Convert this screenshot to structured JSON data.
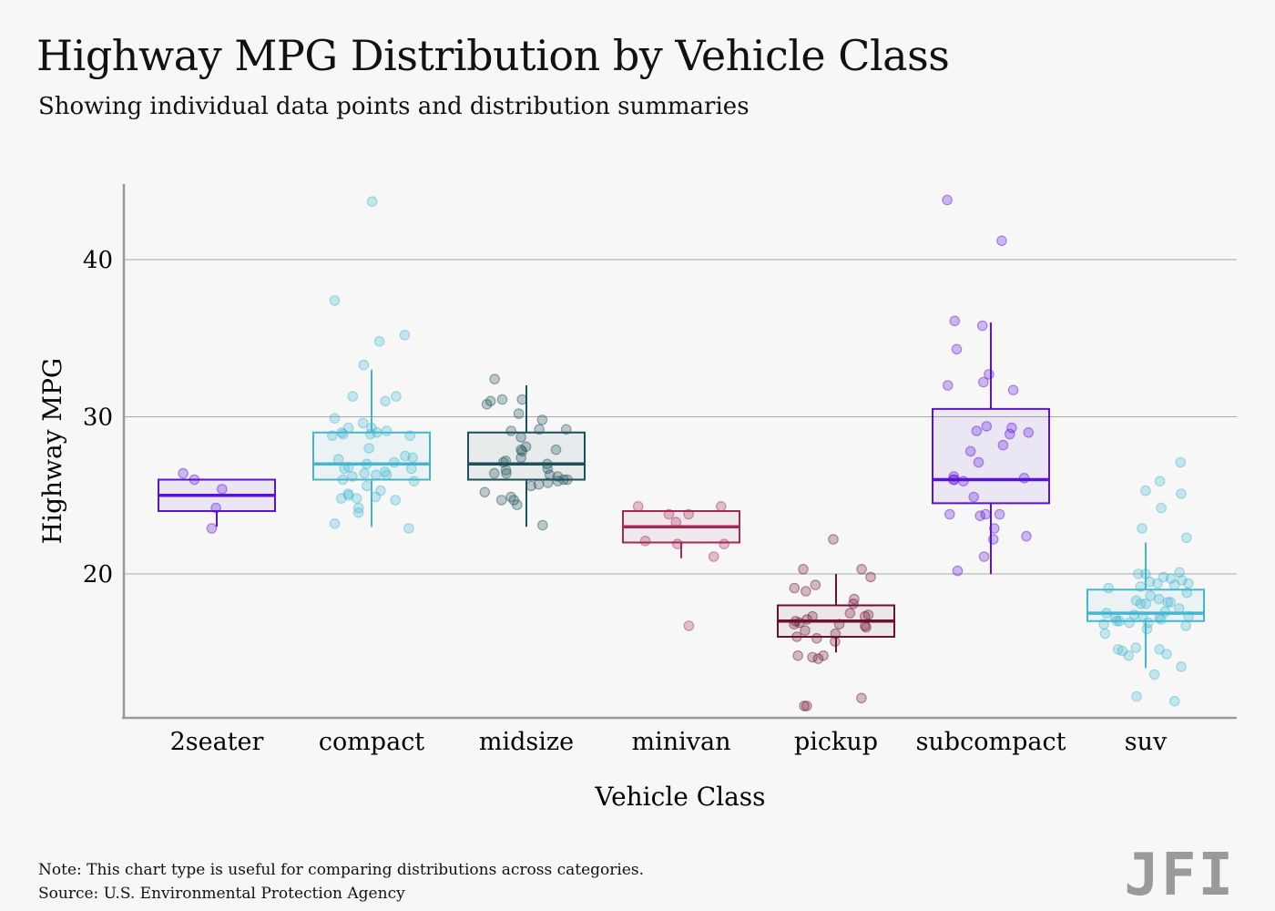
{
  "header": {
    "title": "Highway MPG Distribution by Vehicle Class",
    "subtitle": "Showing individual data points and distribution summaries"
  },
  "footer": {
    "note": "Note: This chart type is useful for comparing distributions across categories.",
    "source": "Source: U.S. Environmental Protection Agency",
    "logo": "JFI"
  },
  "chart_data": {
    "type": "boxplot",
    "title": "Highway MPG Distribution by Vehicle Class",
    "subtitle": "Showing individual data points and distribution summaries",
    "xlabel": "Vehicle Class",
    "ylabel": "Highway MPG",
    "ylim": [
      11,
      45
    ],
    "yticks": [
      20,
      30,
      40
    ],
    "grid": "horizontal",
    "categories": [
      "2seater",
      "compact",
      "midsize",
      "minivan",
      "pickup",
      "subcompact",
      "suv"
    ],
    "series": [
      {
        "category": "2seater",
        "color": "#5a12d8",
        "q1": 24,
        "median": 25,
        "q3": 26,
        "whisker_low": 23,
        "whisker_high": 26,
        "points": [
          24.2,
          25.4,
          26.4,
          26.0,
          22.9
        ]
      },
      {
        "category": "compact",
        "color": "#45b6d2",
        "q1": 26,
        "median": 27,
        "q3": 29,
        "whisker_low": 23,
        "whisker_high": 33,
        "points": [
          43.7,
          37.4,
          35.2,
          34.8,
          33.3,
          31.3,
          31.3,
          31.0,
          29.9,
          29.3,
          29.3,
          29.1,
          29.0,
          29.0,
          28.9,
          28.9,
          28.8,
          28.8,
          27.4,
          27.3,
          27.0,
          26.7,
          26.7,
          26.4,
          26.3,
          26.3,
          26.2,
          26.0,
          25.9,
          25.6,
          25.1,
          24.9,
          24.8,
          24.8,
          24.7,
          24.2,
          23.9,
          23.2,
          22.9,
          25.0,
          27.5,
          28.0,
          26.8,
          25.3,
          29.6,
          27.1,
          26.5
        ]
      },
      {
        "category": "midsize",
        "color": "#1c4f5a",
        "q1": 26,
        "median": 27,
        "q3": 29,
        "whisker_low": 23,
        "whisker_high": 32,
        "points": [
          32.4,
          31.1,
          31.1,
          31.0,
          30.8,
          30.2,
          29.8,
          29.2,
          29.2,
          29.1,
          28.7,
          28.1,
          27.9,
          27.9,
          27.8,
          27.4,
          27.2,
          27.1,
          26.7,
          26.4,
          26.4,
          26.3,
          26.2,
          26.0,
          26.0,
          25.9,
          25.8,
          25.7,
          25.6,
          25.2,
          24.9,
          24.7,
          24.7,
          24.4,
          23.1,
          27.0,
          26.6
        ]
      },
      {
        "category": "minivan",
        "color": "#a32a57",
        "q1": 22,
        "median": 23,
        "q3": 24,
        "whisker_low": 21,
        "whisker_high": 24,
        "points": [
          24.3,
          24.3,
          23.8,
          23.8,
          23.3,
          22.1,
          21.9,
          21.9,
          21.1,
          16.7
        ]
      },
      {
        "category": "pickup",
        "color": "#6b1232",
        "q1": 16,
        "median": 17,
        "q3": 18,
        "whisker_low": 15,
        "whisker_high": 20,
        "points": [
          22.2,
          20.3,
          20.3,
          19.8,
          19.3,
          19.1,
          18.9,
          18.4,
          18.1,
          17.5,
          17.4,
          17.3,
          17.3,
          17.1,
          17.0,
          16.9,
          16.8,
          16.8,
          16.7,
          16.6,
          16.4,
          16.2,
          16.0,
          15.9,
          15.7,
          14.8,
          14.8,
          14.7,
          14.6,
          12.1,
          11.6,
          11.6
        ]
      },
      {
        "category": "subcompact",
        "color": "#5a12d8",
        "q1": 24.5,
        "median": 26,
        "q3": 30.5,
        "whisker_low": 20,
        "whisker_high": 36,
        "points": [
          43.8,
          41.2,
          36.1,
          35.8,
          34.3,
          32.7,
          32.2,
          32.0,
          31.7,
          29.4,
          29.3,
          29.1,
          29.0,
          28.9,
          28.2,
          27.8,
          27.1,
          26.2,
          26.1,
          26.0,
          26.0,
          25.9,
          24.9,
          23.8,
          23.8,
          23.8,
          23.7,
          22.9,
          22.4,
          22.2,
          21.1,
          20.2
        ]
      },
      {
        "category": "suv",
        "color": "#45b6d2",
        "q1": 17,
        "median": 17.5,
        "q3": 19,
        "whisker_low": 14,
        "whisker_high": 22,
        "points": [
          27.1,
          25.9,
          25.3,
          25.1,
          24.2,
          22.9,
          22.3,
          20.1,
          20.0,
          20.0,
          19.8,
          19.7,
          19.6,
          19.5,
          19.4,
          19.4,
          19.3,
          19.2,
          19.1,
          18.8,
          18.6,
          18.4,
          18.3,
          18.2,
          18.2,
          18.1,
          18.1,
          17.8,
          17.6,
          17.5,
          17.4,
          17.3,
          17.3,
          17.2,
          17.2,
          17.1,
          17.0,
          17.0,
          16.9,
          16.9,
          16.8,
          16.7,
          16.5,
          16.2,
          15.3,
          15.2,
          15.2,
          15.1,
          14.9,
          14.8,
          14.1,
          13.6,
          12.2,
          11.9
        ]
      }
    ]
  }
}
